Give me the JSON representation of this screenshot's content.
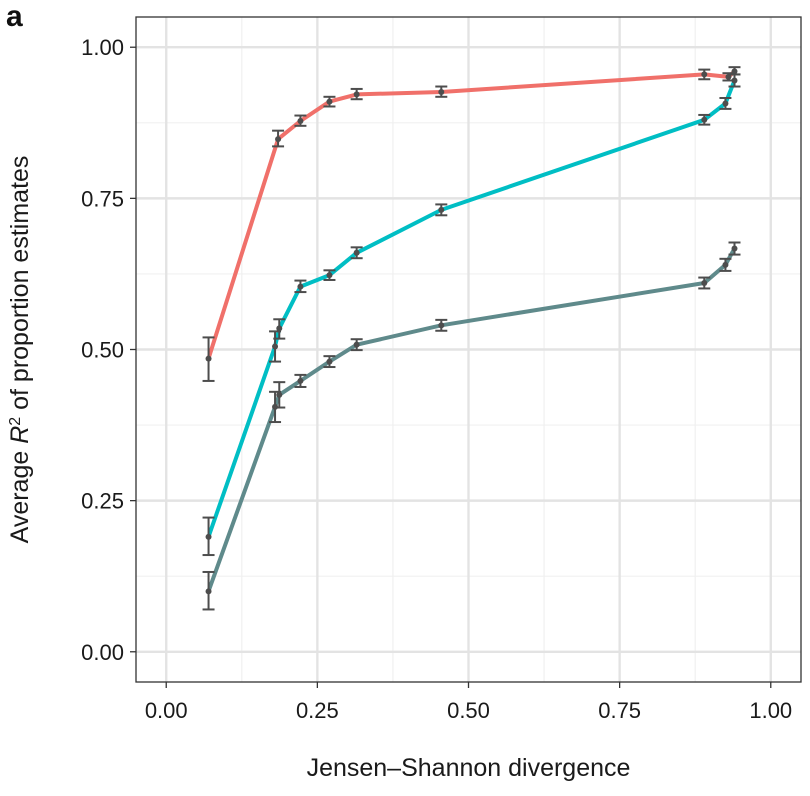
{
  "panel_label": "a",
  "chart_data": {
    "type": "line",
    "title": "",
    "xlabel": "Jensen–Shannon divergence",
    "ylabel_prefix": "Average ",
    "ylabel_var": "R",
    "ylabel_sup": "2",
    "ylabel_suffix": " of proportion estimates",
    "xlim": [
      -0.05,
      1.05
    ],
    "ylim": [
      -0.05,
      1.05
    ],
    "x_ticks": [
      0.0,
      0.25,
      0.5,
      0.75,
      1.0
    ],
    "y_ticks": [
      0.0,
      0.25,
      0.5,
      0.75,
      1.0
    ],
    "x_tick_labels": [
      "0.00",
      "0.25",
      "0.50",
      "0.75",
      "1.00"
    ],
    "y_tick_labels": [
      "0.00",
      "0.25",
      "0.50",
      "0.75",
      "1.00"
    ],
    "grid": true,
    "legend": "none",
    "error_bar_color": "#4d4d4d",
    "series": [
      {
        "color": "#f0706a",
        "points": [
          {
            "x": 0.07,
            "y": 0.485,
            "lo": 0.448,
            "hi": 0.52
          },
          {
            "x": 0.185,
            "y": 0.848,
            "lo": 0.836,
            "hi": 0.862
          },
          {
            "x": 0.222,
            "y": 0.878,
            "lo": 0.87,
            "hi": 0.887
          },
          {
            "x": 0.27,
            "y": 0.91,
            "lo": 0.902,
            "hi": 0.918
          },
          {
            "x": 0.315,
            "y": 0.922,
            "lo": 0.914,
            "hi": 0.931
          },
          {
            "x": 0.455,
            "y": 0.926,
            "lo": 0.918,
            "hi": 0.935
          },
          {
            "x": 0.89,
            "y": 0.955,
            "lo": 0.947,
            "hi": 0.963
          },
          {
            "x": 0.93,
            "y": 0.951,
            "lo": 0.945,
            "hi": 0.957
          },
          {
            "x": 0.94,
            "y": 0.96,
            "lo": 0.955,
            "hi": 0.967
          }
        ]
      },
      {
        "color": "#00bec4",
        "points": [
          {
            "x": 0.07,
            "y": 0.19,
            "lo": 0.16,
            "hi": 0.222
          },
          {
            "x": 0.18,
            "y": 0.505,
            "lo": 0.48,
            "hi": 0.53
          },
          {
            "x": 0.187,
            "y": 0.535,
            "lo": 0.518,
            "hi": 0.55
          },
          {
            "x": 0.222,
            "y": 0.604,
            "lo": 0.595,
            "hi": 0.614
          },
          {
            "x": 0.27,
            "y": 0.623,
            "lo": 0.615,
            "hi": 0.631
          },
          {
            "x": 0.315,
            "y": 0.66,
            "lo": 0.651,
            "hi": 0.669
          },
          {
            "x": 0.455,
            "y": 0.731,
            "lo": 0.722,
            "hi": 0.74
          },
          {
            "x": 0.89,
            "y": 0.88,
            "lo": 0.872,
            "hi": 0.888
          },
          {
            "x": 0.925,
            "y": 0.907,
            "lo": 0.898,
            "hi": 0.916
          },
          {
            "x": 0.94,
            "y": 0.945,
            "lo": 0.935,
            "hi": 0.955
          }
        ]
      },
      {
        "color": "#5f8a8b",
        "points": [
          {
            "x": 0.07,
            "y": 0.1,
            "lo": 0.07,
            "hi": 0.132
          },
          {
            "x": 0.18,
            "y": 0.405,
            "lo": 0.38,
            "hi": 0.43
          },
          {
            "x": 0.187,
            "y": 0.425,
            "lo": 0.404,
            "hi": 0.446
          },
          {
            "x": 0.222,
            "y": 0.448,
            "lo": 0.438,
            "hi": 0.458
          },
          {
            "x": 0.27,
            "y": 0.48,
            "lo": 0.471,
            "hi": 0.489
          },
          {
            "x": 0.315,
            "y": 0.508,
            "lo": 0.499,
            "hi": 0.517
          },
          {
            "x": 0.455,
            "y": 0.54,
            "lo": 0.531,
            "hi": 0.549
          },
          {
            "x": 0.89,
            "y": 0.61,
            "lo": 0.601,
            "hi": 0.619
          },
          {
            "x": 0.925,
            "y": 0.64,
            "lo": 0.63,
            "hi": 0.65
          },
          {
            "x": 0.94,
            "y": 0.667,
            "lo": 0.657,
            "hi": 0.677
          }
        ]
      }
    ]
  }
}
